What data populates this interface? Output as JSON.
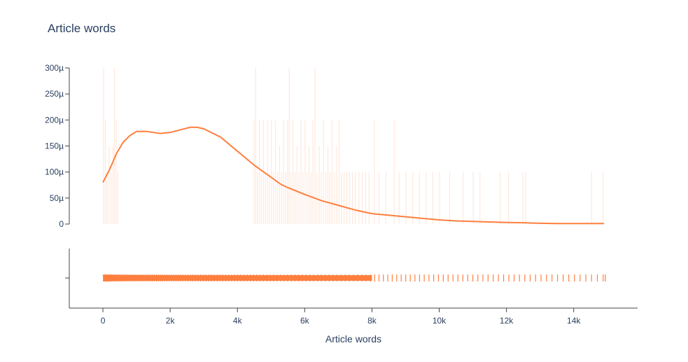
{
  "chart_data": {
    "type": "line",
    "title": "Article words",
    "xlabel": "Article words",
    "ylabel": "",
    "color": "#ff7f3f",
    "grid": false,
    "xlim": [
      -1000,
      15900
    ],
    "ylim": [
      0,
      300
    ],
    "y_unit": "µ",
    "x_ticks": [
      {
        "value": 0,
        "label": "0"
      },
      {
        "value": 2000,
        "label": "2k"
      },
      {
        "value": 4000,
        "label": "4k"
      },
      {
        "value": 6000,
        "label": "6k"
      },
      {
        "value": 8000,
        "label": "8k"
      },
      {
        "value": 10000,
        "label": "10k"
      },
      {
        "value": 12000,
        "label": "12k"
      },
      {
        "value": 14000,
        "label": "14k"
      }
    ],
    "y_ticks": [
      {
        "value": 0,
        "label": "0"
      },
      {
        "value": 50,
        "label": "50µ"
      },
      {
        "value": 100,
        "label": "100µ"
      },
      {
        "value": 150,
        "label": "150µ"
      },
      {
        "value": 200,
        "label": "200µ"
      },
      {
        "value": 250,
        "label": "250µ"
      },
      {
        "value": 300,
        "label": "300µ"
      }
    ],
    "series": [
      {
        "kind": "density",
        "x": [
          0,
          200,
          400,
          600,
          800,
          1000,
          1300,
          1700,
          2000,
          2300,
          2600,
          2800,
          3000,
          3500,
          4000,
          4500,
          5000,
          5300,
          5500,
          6000,
          6500,
          7000,
          7500,
          8000,
          8500,
          9000,
          9500,
          10000,
          10500,
          11000,
          11500,
          12000,
          12500,
          13000,
          13500,
          14000,
          14500,
          14900
        ],
        "y": [
          80,
          105,
          135,
          157,
          170,
          178,
          178,
          174,
          176,
          181,
          186,
          186,
          183,
          167,
          140,
          113,
          90,
          76,
          70,
          57,
          45,
          36,
          27,
          20,
          17,
          14,
          11,
          8,
          6,
          5,
          4,
          3,
          2.5,
          1.5,
          1,
          1,
          1,
          1
        ]
      },
      {
        "kind": "histogram",
        "bins": [
          {
            "x": 10,
            "y": 300
          },
          {
            "x": 60,
            "y": 200
          },
          {
            "x": 110,
            "y": 100
          },
          {
            "x": 170,
            "y": 150
          },
          {
            "x": 230,
            "y": 100
          },
          {
            "x": 290,
            "y": 150
          },
          {
            "x": 330,
            "y": 300
          },
          {
            "x": 380,
            "y": 200
          },
          {
            "x": 430,
            "y": 100
          },
          {
            "x": 4480,
            "y": 200
          },
          {
            "x": 4530,
            "y": 300
          },
          {
            "x": 4580,
            "y": 100
          },
          {
            "x": 4640,
            "y": 200
          },
          {
            "x": 4700,
            "y": 100
          },
          {
            "x": 4760,
            "y": 200
          },
          {
            "x": 4820,
            "y": 100
          },
          {
            "x": 4880,
            "y": 200
          },
          {
            "x": 4940,
            "y": 100
          },
          {
            "x": 5000,
            "y": 200
          },
          {
            "x": 5060,
            "y": 100
          },
          {
            "x": 5120,
            "y": 200
          },
          {
            "x": 5180,
            "y": 100
          },
          {
            "x": 5240,
            "y": 150
          },
          {
            "x": 5300,
            "y": 100
          },
          {
            "x": 5360,
            "y": 200
          },
          {
            "x": 5420,
            "y": 100
          },
          {
            "x": 5480,
            "y": 200
          },
          {
            "x": 5530,
            "y": 300
          },
          {
            "x": 5580,
            "y": 100
          },
          {
            "x": 5640,
            "y": 200
          },
          {
            "x": 5700,
            "y": 100
          },
          {
            "x": 5760,
            "y": 150
          },
          {
            "x": 5820,
            "y": 100
          },
          {
            "x": 5880,
            "y": 200
          },
          {
            "x": 5940,
            "y": 100
          },
          {
            "x": 6000,
            "y": 200
          },
          {
            "x": 6060,
            "y": 100
          },
          {
            "x": 6120,
            "y": 150
          },
          {
            "x": 6180,
            "y": 100
          },
          {
            "x": 6230,
            "y": 200
          },
          {
            "x": 6290,
            "y": 300
          },
          {
            "x": 6350,
            "y": 100
          },
          {
            "x": 6420,
            "y": 150
          },
          {
            "x": 6480,
            "y": 100
          },
          {
            "x": 6550,
            "y": 200
          },
          {
            "x": 6620,
            "y": 100
          },
          {
            "x": 6680,
            "y": 150
          },
          {
            "x": 6740,
            "y": 100
          },
          {
            "x": 6800,
            "y": 200
          },
          {
            "x": 6870,
            "y": 100
          },
          {
            "x": 6940,
            "y": 150
          },
          {
            "x": 7010,
            "y": 200
          },
          {
            "x": 7080,
            "y": 100
          },
          {
            "x": 7160,
            "y": 100
          },
          {
            "x": 7240,
            "y": 100
          },
          {
            "x": 7320,
            "y": 100
          },
          {
            "x": 7410,
            "y": 100
          },
          {
            "x": 7500,
            "y": 100
          },
          {
            "x": 7600,
            "y": 100
          },
          {
            "x": 7700,
            "y": 100
          },
          {
            "x": 7800,
            "y": 100
          },
          {
            "x": 7900,
            "y": 100
          },
          {
            "x": 8060,
            "y": 200
          },
          {
            "x": 8200,
            "y": 100
          },
          {
            "x": 8400,
            "y": 100
          },
          {
            "x": 8650,
            "y": 200
          },
          {
            "x": 8800,
            "y": 100
          },
          {
            "x": 9000,
            "y": 100
          },
          {
            "x": 9200,
            "y": 100
          },
          {
            "x": 9400,
            "y": 100
          },
          {
            "x": 9600,
            "y": 100
          },
          {
            "x": 9800,
            "y": 100
          },
          {
            "x": 10000,
            "y": 100
          },
          {
            "x": 10300,
            "y": 100
          },
          {
            "x": 10700,
            "y": 100
          },
          {
            "x": 11000,
            "y": 100
          },
          {
            "x": 11200,
            "y": 100
          },
          {
            "x": 11800,
            "y": 100
          },
          {
            "x": 12050,
            "y": 100
          },
          {
            "x": 12480,
            "y": 100
          },
          {
            "x": 12560,
            "y": 100
          },
          {
            "x": 14520,
            "y": 100
          },
          {
            "x": 14860,
            "y": 100
          }
        ]
      },
      {
        "kind": "rug",
        "x": [
          14,
          32,
          55,
          78,
          101,
          125,
          150,
          176,
          203,
          231,
          260,
          290,
          321,
          353,
          386,
          420,
          455,
          491,
          528,
          566,
          605,
          645,
          686,
          728,
          771,
          815,
          860,
          906,
          953,
          1001,
          1050,
          1100,
          1151,
          1203,
          1256,
          1310,
          1365,
          1421,
          1478,
          1536,
          1595,
          1655,
          1716,
          1778,
          1841,
          1905,
          1970,
          2036,
          2103,
          2171,
          2240,
          2310,
          2381,
          2453,
          2526,
          2600,
          2675,
          2751,
          2828,
          2906,
          2985,
          3065,
          3146,
          3228,
          3311,
          3395,
          3480,
          3566,
          3653,
          3741,
          3830,
          3920,
          4011,
          4103,
          4196,
          4290,
          4385,
          4481,
          4578,
          4676,
          4775,
          4875,
          4976,
          5078,
          5181,
          5285,
          5390,
          5496,
          5603,
          5711,
          5820,
          5930,
          6041,
          6153,
          6266,
          6380,
          6495,
          6611,
          6728,
          6846,
          6965,
          7085,
          7206,
          7328,
          7451,
          7575,
          7700,
          7826,
          7953,
          8081,
          8210,
          8340,
          8471,
          8603,
          8736,
          8870,
          9005,
          9141,
          9278,
          9416,
          9555,
          9695,
          9836,
          9978,
          10121,
          10265,
          10410,
          10556,
          10703,
          10851,
          11000,
          11150,
          11301,
          11453,
          11606,
          11760,
          11915,
          12071,
          12228,
          12386,
          12545,
          12705,
          12866,
          13028,
          13191,
          13355,
          13520,
          13686,
          13853,
          14021,
          14190,
          14360,
          14531,
          14703,
          14876,
          14940
        ]
      }
    ]
  }
}
